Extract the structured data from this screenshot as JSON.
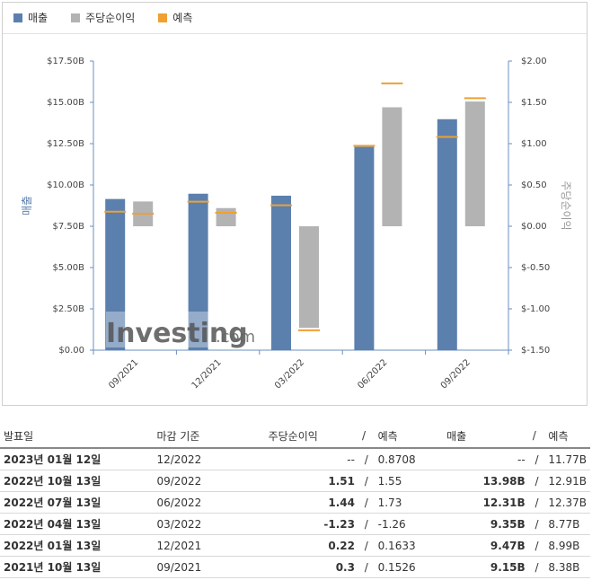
{
  "legend": [
    {
      "label": "매출",
      "color": "#5b80ae"
    },
    {
      "label": "주당순이익",
      "color": "#b3b3b3"
    },
    {
      "label": "예측",
      "color": "#f0a030"
    }
  ],
  "axes": {
    "left_label": "매출",
    "right_label": "주당순이익",
    "left_ticks": [
      "$17.50B",
      "$15.00B",
      "$12.50B",
      "$10.00B",
      "$7.50B",
      "$5.00B",
      "$2.50B",
      "$0.00"
    ],
    "right_ticks": [
      "$2.00",
      "$1.50",
      "$1.00",
      "$0.50",
      "$0.00",
      "$-0.50",
      "$-1.00",
      "$-1.50"
    ]
  },
  "watermark": {
    "brand": "Investing",
    "suffix": ".com"
  },
  "chart_data": {
    "type": "bar",
    "categories": [
      "09/2021",
      "12/2021",
      "03/2022",
      "06/2022",
      "09/2022"
    ],
    "revenue_ylim": [
      0,
      17.5
    ],
    "eps_ylim": [
      -1.5,
      2.0
    ],
    "series": [
      {
        "name": "매출",
        "values": [
          9.15,
          9.47,
          9.35,
          12.31,
          13.98
        ],
        "unit": "B USD"
      },
      {
        "name": "주당순이익",
        "values": [
          0.3,
          0.22,
          -1.23,
          1.44,
          1.51
        ]
      },
      {
        "name": "예측",
        "revenue_forecast": [
          8.38,
          8.99,
          8.77,
          12.37,
          12.91
        ],
        "eps_forecast": [
          0.1526,
          0.1633,
          -1.26,
          1.73,
          1.55
        ]
      }
    ],
    "grid": false,
    "legend_position": "top-left"
  },
  "table": {
    "headers": {
      "date": "발표일",
      "period": "마감 기준",
      "eps": "주당순이익",
      "slash": "/",
      "forecast": "예측",
      "revenue": "매출"
    },
    "rows": [
      {
        "date": "2023년 01월 12일",
        "period": "12/2022",
        "eps": "--",
        "eps_class": "plain",
        "eps_fc": "0.8708",
        "rev": "--",
        "rev_class": "plain",
        "rev_fc": "11.77B"
      },
      {
        "date": "2022년 10월 13일",
        "period": "09/2022",
        "eps": "1.51",
        "eps_class": "pos",
        "eps_fc": "1.55",
        "rev": "13.98B",
        "rev_class": "neg",
        "rev_fc": "12.91B"
      },
      {
        "date": "2022년 07월 13일",
        "period": "06/2022",
        "eps": "1.44",
        "eps_class": "pos",
        "eps_fc": "1.73",
        "rev": "12.31B",
        "rev_class": "pos",
        "rev_fc": "12.37B"
      },
      {
        "date": "2022년 04월 13일",
        "period": "03/2022",
        "eps": "-1.23",
        "eps_class": "neg",
        "eps_fc": "-1.26",
        "rev": "9.35B",
        "rev_class": "neg",
        "rev_fc": "8.77B"
      },
      {
        "date": "2022년 01월 13일",
        "period": "12/2021",
        "eps": "0.22",
        "eps_class": "neg",
        "eps_fc": "0.1633",
        "rev": "9.47B",
        "rev_class": "neg",
        "rev_fc": "8.99B"
      },
      {
        "date": "2021년 10월 13일",
        "period": "09/2021",
        "eps": "0.3",
        "eps_class": "neg",
        "eps_fc": "0.1526",
        "rev": "9.15B",
        "rev_class": "neg",
        "rev_fc": "8.38B"
      }
    ]
  }
}
